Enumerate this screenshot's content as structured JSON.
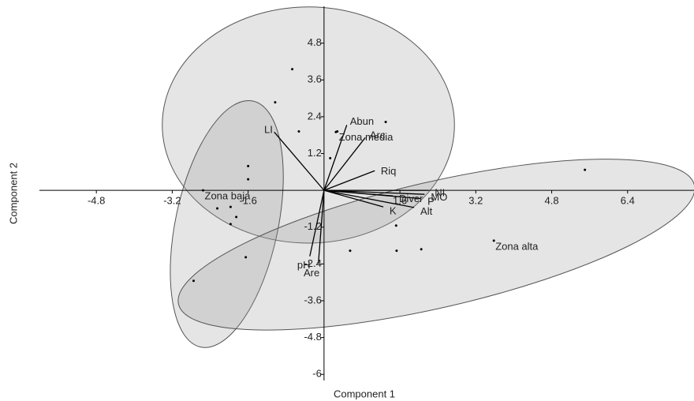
{
  "chart_data": {
    "type": "biplot",
    "x_label": "Component 1",
    "y_label": "Component 2",
    "xlim": [
      -6,
      7.8
    ],
    "ylim": [
      -6.2,
      6
    ],
    "xticks": [
      -4.8,
      -3.2,
      -1.6,
      1.6,
      3.2,
      4.8,
      6.4
    ],
    "yticks": [
      4.8,
      3.6,
      2.4,
      1.2,
      -1.2,
      -2.4,
      -3.6,
      -4.8,
      -6
    ],
    "points": {
      "x": [
        -0.67,
        -1.03,
        -0.53,
        0.25,
        1.3,
        0.13,
        -1.6,
        -1.6,
        -2.25,
        -1.97,
        -1.85,
        -1.97,
        -1.65,
        -2.75,
        0.55,
        1.52,
        1.53,
        2.05,
        5.5
      ],
      "y": [
        3.95,
        2.87,
        1.92,
        1.9,
        2.23,
        1.05,
        0.79,
        0.36,
        -0.59,
        -0.54,
        -0.87,
        -1.1,
        -2.18,
        -2.95,
        -1.97,
        -1.15,
        -1.97,
        -1.92,
        0.67
      ]
    },
    "vectors": [
      {
        "name": "LI",
        "x": -1.05,
        "y": 1.9
      },
      {
        "name": "Abun",
        "x": 0.48,
        "y": 2.13
      },
      {
        "name": "Arc",
        "x": 0.87,
        "y": 1.72
      },
      {
        "name": "Riq",
        "x": 1.07,
        "y": 0.64
      },
      {
        "name": "NI",
        "x": 2.2,
        "y": 0.0
      },
      {
        "name": "MO",
        "x": 2.12,
        "y": -0.13
      },
      {
        "name": "P",
        "x": 2.05,
        "y": -0.27
      },
      {
        "name": "Diver",
        "x": 1.45,
        "y": -0.18
      },
      {
        "name": "K",
        "x": 1.25,
        "y": -0.54
      },
      {
        "name": "Alt",
        "x": 1.9,
        "y": -0.56
      },
      {
        "name": "pH",
        "x": -0.3,
        "y": -2.15
      },
      {
        "name": "Are",
        "x": -0.12,
        "y": -2.4
      }
    ],
    "groups": [
      {
        "name": "Zona media",
        "x": 0.28,
        "y": 1.92,
        "cx": -0.33,
        "cy": 2.13,
        "rx": 3.08,
        "ry": 3.85,
        "angle": 0
      },
      {
        "name": "Zona baja",
        "x": -2.55,
        "y": 0.0,
        "cx": -2.05,
        "cy": -1.1,
        "rx": 1.08,
        "ry": 4.1,
        "angle": 12
      },
      {
        "name": "Zona alta",
        "x": 3.58,
        "y": -1.64,
        "cx": 2.37,
        "cy": -1.77,
        "rx": 5.58,
        "ry": 2.05,
        "angle": -13
      }
    ]
  }
}
